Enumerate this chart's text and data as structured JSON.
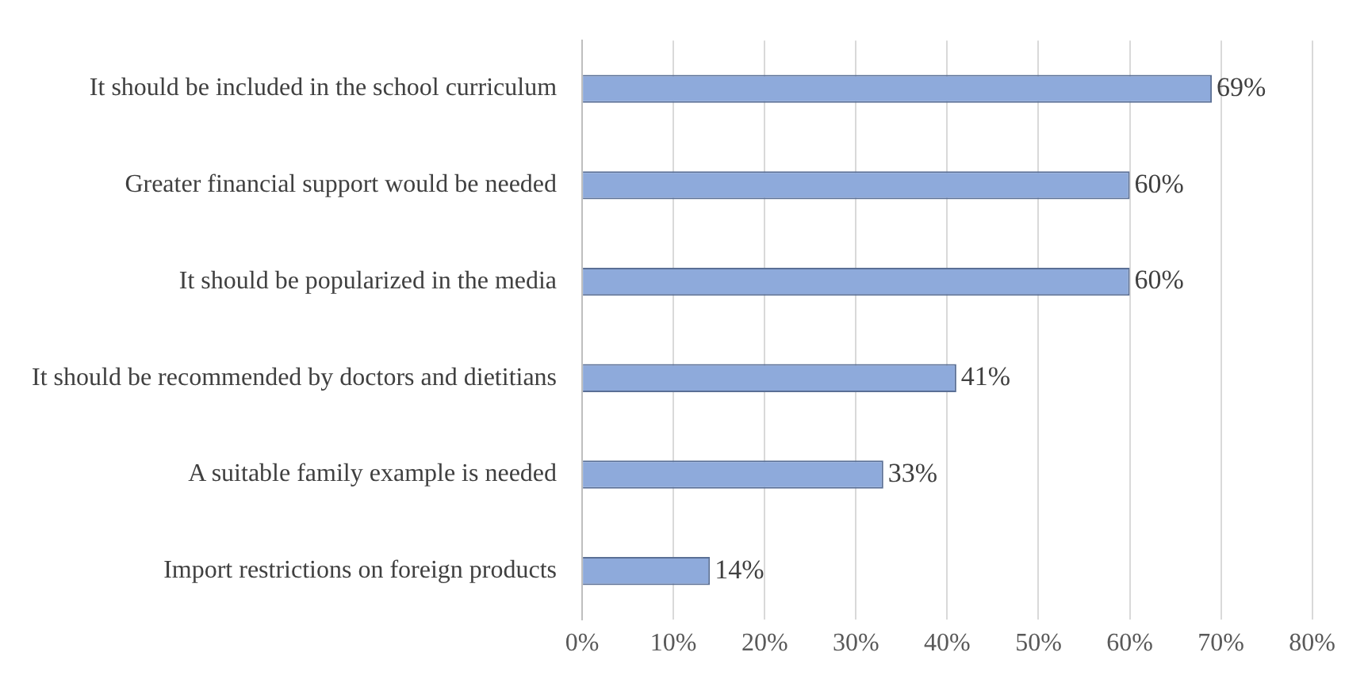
{
  "chart_data": {
    "type": "bar",
    "orientation": "horizontal",
    "categories": [
      "It should be included in the school curriculum",
      "Greater financial support would be needed",
      "It should be popularized in the media",
      "It should be recommended by doctors and dietitians",
      "A suitable family example is needed",
      "Import restrictions on foreign products"
    ],
    "values": [
      69,
      60,
      60,
      41,
      33,
      14
    ],
    "value_labels": [
      "69%",
      "60%",
      "60%",
      "41%",
      "33%",
      "14%"
    ],
    "color": "#8eaadb",
    "xlim": [
      0,
      80
    ],
    "xticks": [
      {
        "value": 0,
        "label": "0%"
      },
      {
        "value": 10,
        "label": "10%"
      },
      {
        "value": 20,
        "label": "20%"
      },
      {
        "value": 30,
        "label": "30%"
      },
      {
        "value": 40,
        "label": "40%"
      },
      {
        "value": 50,
        "label": "50%"
      },
      {
        "value": 60,
        "label": "60%"
      },
      {
        "value": 70,
        "label": "70%"
      },
      {
        "value": 80,
        "label": "80%"
      }
    ],
    "grid": "x",
    "legend": false
  }
}
